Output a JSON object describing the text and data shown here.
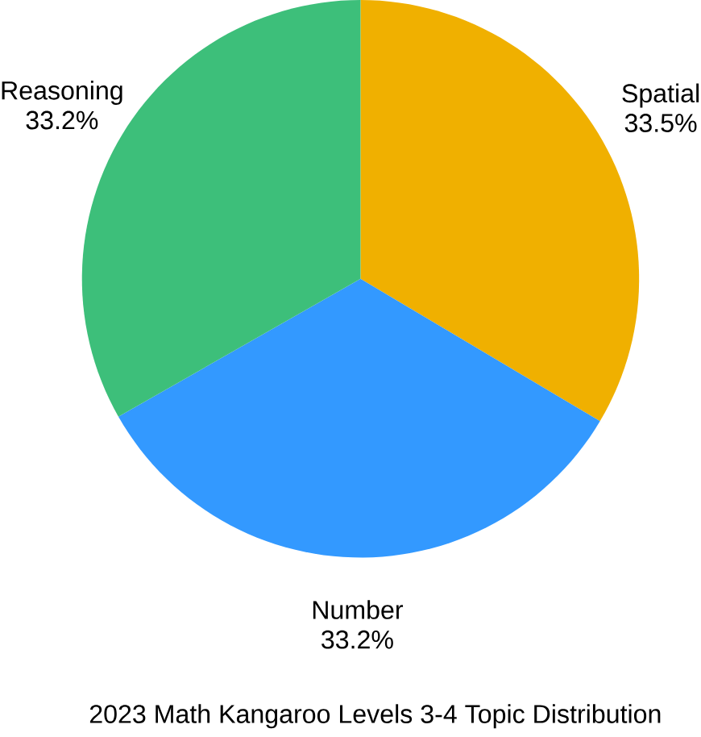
{
  "chart_data": {
    "type": "pie",
    "title": "2023 Math Kangaroo  Levels 3-4 Topic Distribution",
    "categories": [
      "Spatial",
      "Number",
      "Reasoning"
    ],
    "values": [
      33.5,
      33.2,
      33.2
    ],
    "value_labels": [
      "33.5%",
      "33.2%",
      "33.2%"
    ],
    "colors": [
      "#f0b000",
      "#3399ff",
      "#3dbf7a"
    ]
  }
}
